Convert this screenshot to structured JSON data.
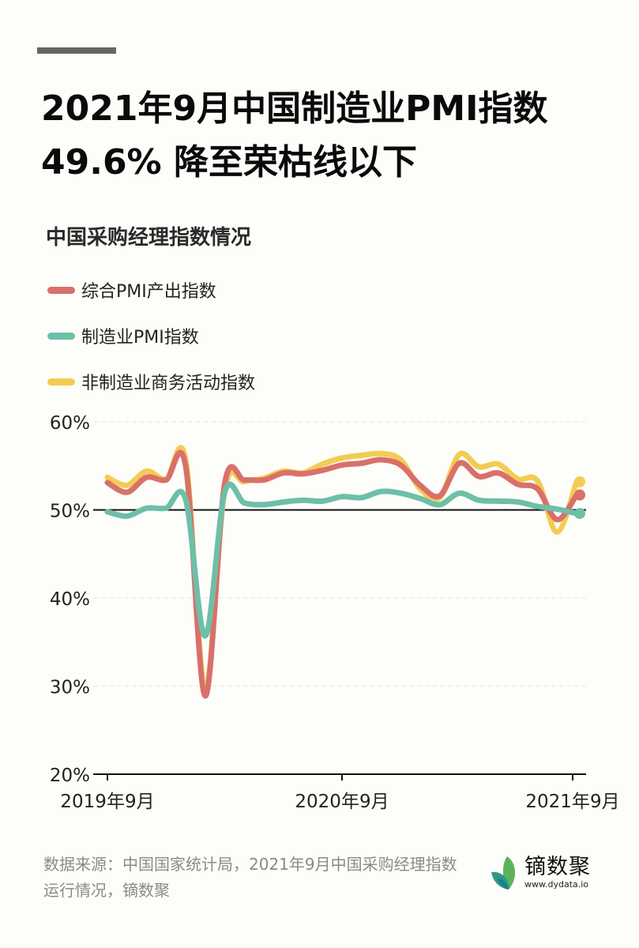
{
  "header": {
    "title_line1": "2021年9月中国制造业PMI指数",
    "title_line2": "49.6%  降至荣枯线以下"
  },
  "subtitle": "中国采购经理指数情况",
  "legend": [
    {
      "label": "综合PMI产出指数",
      "color": "#D9706A"
    },
    {
      "label": "制造业PMI指数",
      "color": "#6DBFA8"
    },
    {
      "label": "非制造业商务活动指数",
      "color": "#F2CC52"
    }
  ],
  "footer": {
    "source": "数据来源：中国国家统计局，2021年9月中国采购经理指数运行情况，镝数聚",
    "logo_name": "镝数聚",
    "logo_url": "www.dydata.io"
  },
  "chart_data": {
    "type": "line",
    "title": "中国采购经理指数情况",
    "xlabel": "",
    "ylabel": "",
    "ylim": [
      20,
      60
    ],
    "yticks": [
      "20%",
      "30%",
      "40%",
      "50%",
      "60%"
    ],
    "reference_line": 50,
    "grid": "dashed horizontal",
    "legend_position": "top-left",
    "x_tick_labels": [
      {
        "index": 0,
        "label": "2019年9月"
      },
      {
        "index": 12,
        "label": "2020年9月"
      },
      {
        "index": 24,
        "label": "2021年9月"
      }
    ],
    "x": [
      "2019-09",
      "2019-10",
      "2019-11",
      "2019-12",
      "2020-01",
      "2020-02",
      "2020-03",
      "2020-04",
      "2020-05",
      "2020-06",
      "2020-07",
      "2020-08",
      "2020-09",
      "2020-10",
      "2020-11",
      "2020-12",
      "2021-01",
      "2021-02",
      "2021-03",
      "2021-04",
      "2021-05",
      "2021-06",
      "2021-07",
      "2021-08",
      "2021-09"
    ],
    "series": [
      {
        "name": "非制造业商务活动指数",
        "color": "#F2CC52",
        "values": [
          53.7,
          52.8,
          54.4,
          53.5,
          55.7,
          29.6,
          52.3,
          53.2,
          53.6,
          54.4,
          54.2,
          55.2,
          55.9,
          56.2,
          56.4,
          55.7,
          52.4,
          51.4,
          56.3,
          54.9,
          55.2,
          53.5,
          53.3,
          47.5,
          53.2
        ]
      },
      {
        "name": "综合PMI产出指数",
        "color": "#D9706A",
        "values": [
          53.1,
          52.0,
          53.7,
          53.4,
          55.0,
          28.9,
          53.0,
          53.4,
          53.4,
          54.2,
          54.1,
          54.5,
          55.1,
          55.3,
          55.7,
          55.1,
          52.8,
          51.6,
          55.3,
          53.8,
          54.2,
          52.9,
          52.4,
          48.9,
          51.7
        ]
      },
      {
        "name": "制造业PMI指数",
        "color": "#6DBFA8",
        "values": [
          49.8,
          49.3,
          50.2,
          50.2,
          51.2,
          35.7,
          52.0,
          50.8,
          50.6,
          50.9,
          51.1,
          51.0,
          51.5,
          51.4,
          52.1,
          51.9,
          51.3,
          50.6,
          51.9,
          51.1,
          51.0,
          50.9,
          50.4,
          50.1,
          49.6
        ]
      }
    ]
  }
}
